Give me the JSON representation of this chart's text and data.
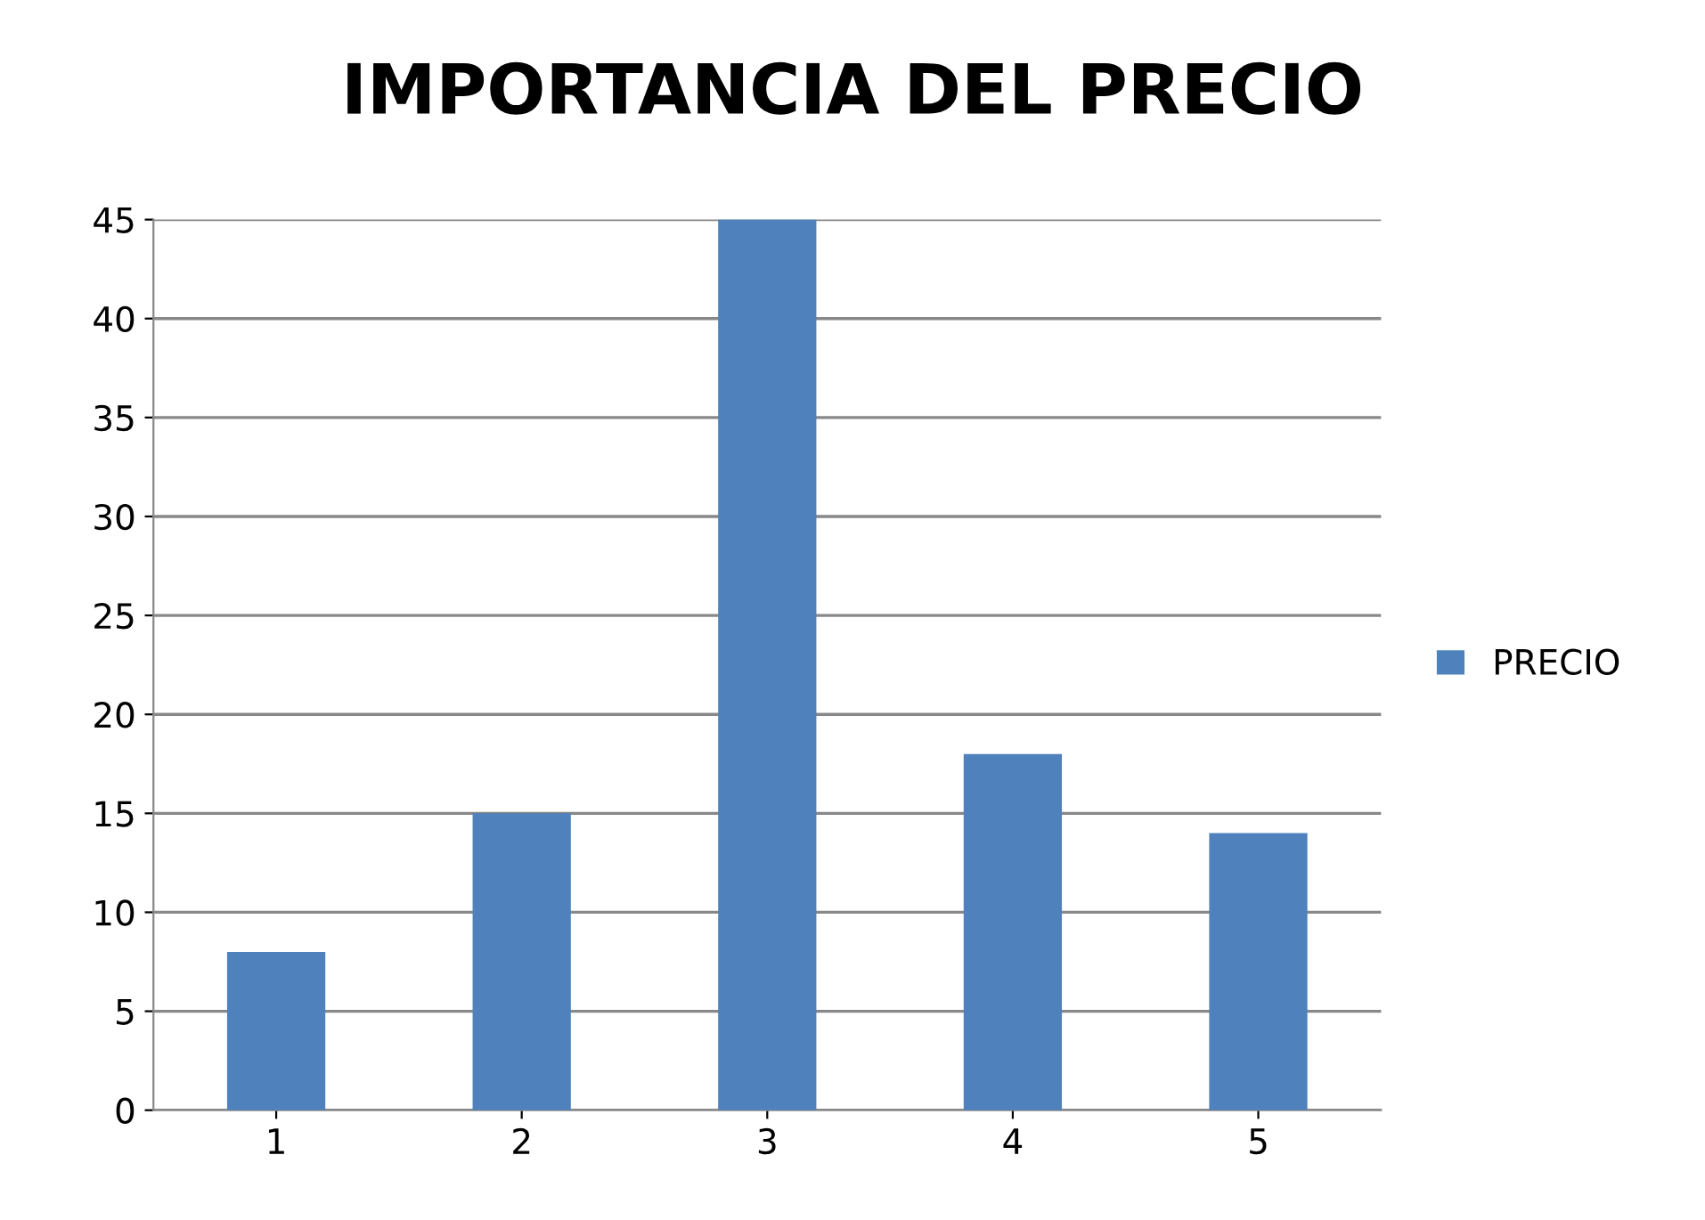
{
  "chart_data": {
    "type": "bar",
    "title": "IMPORTANCIA DEL PRECIO",
    "categories": [
      "1",
      "2",
      "3",
      "4",
      "5"
    ],
    "series": [
      {
        "name": "PRECIO",
        "color": "#4f81bd",
        "values": [
          8,
          15,
          45,
          18,
          14
        ]
      }
    ],
    "ylim": [
      0,
      45
    ],
    "yticks": [
      0,
      5,
      10,
      15,
      20,
      25,
      30,
      35,
      40,
      45
    ],
    "grid": "y",
    "legend": "right"
  }
}
